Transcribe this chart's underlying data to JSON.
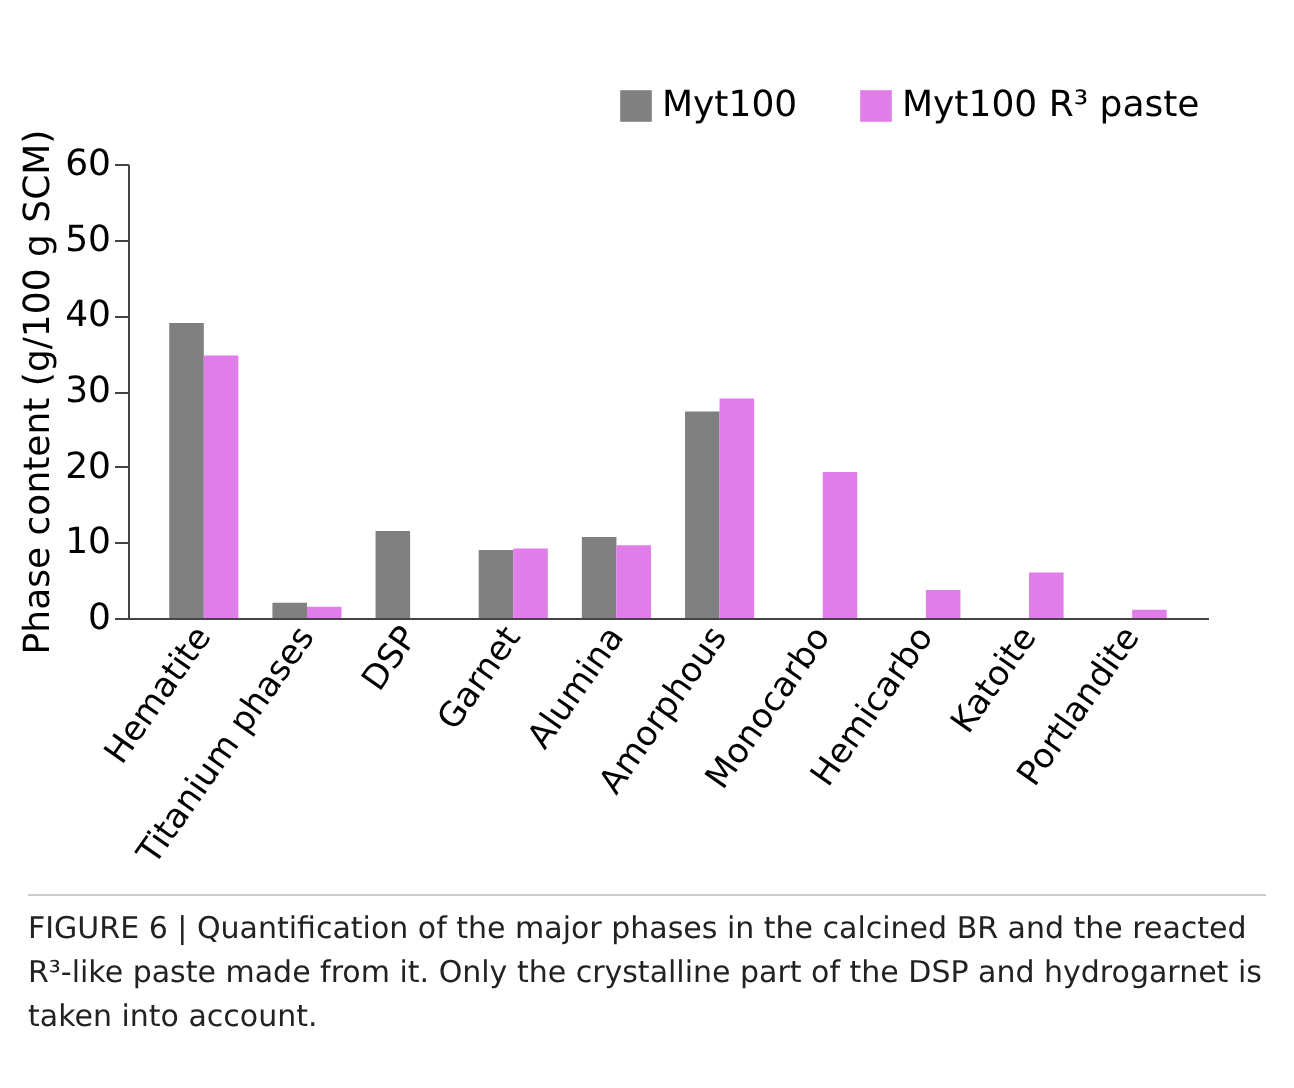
{
  "chart_data": {
    "type": "bar",
    "ylabel": "Phase content (g/100 g SCM)",
    "categories": [
      "Hematite",
      "Titanium phases",
      "DSP",
      "Garnet",
      "Alumina",
      "Amorphous",
      "Monocarbo",
      "Hemicarbo",
      "Katoite",
      "Portlandite"
    ],
    "series": [
      {
        "name": "Myt100",
        "color": "#808080",
        "values": [
          39,
          2,
          11.5,
          9,
          10.7,
          27.3,
          0,
          0,
          0,
          0
        ]
      },
      {
        "name": "Myt100 R³ paste",
        "color": "#e07de8",
        "values": [
          34.7,
          1.5,
          0,
          9.2,
          9.6,
          29,
          19.3,
          3.7,
          6,
          1.1
        ]
      }
    ],
    "ylim": [
      0,
      60
    ],
    "yticks": [
      0,
      10,
      20,
      30,
      40,
      50,
      60
    ],
    "grid": false,
    "legend": "top right",
    "annotations": [
      "FIGURE 6 | Quantification of the major phases in the calcined BR and the reacted R³-like paste made from it. Only the crystalline part of the DSP and hydrogarnet is taken into account."
    ]
  }
}
